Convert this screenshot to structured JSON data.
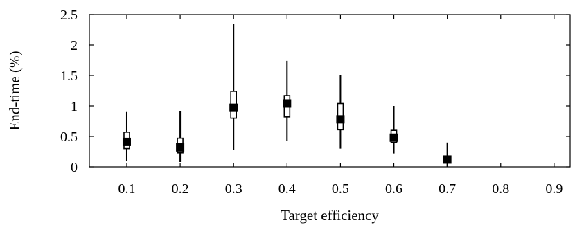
{
  "chart_data": {
    "type": "box",
    "title": "",
    "xlabel": "Target efficiency",
    "ylabel": "End-time (%)",
    "xlim": [
      0.03,
      0.93
    ],
    "ylim": [
      0,
      2.5
    ],
    "xticks": [
      "0.1",
      "0.2",
      "0.3",
      "0.4",
      "0.5",
      "0.6",
      "0.7",
      "0.8",
      "0.9"
    ],
    "yticks": [
      "0",
      "0.5",
      "1",
      "1.5",
      "2",
      "2.5"
    ],
    "grid": false,
    "legend": "none",
    "series": [
      {
        "points": [
          {
            "x": 0.1,
            "min": 0.1,
            "q1": 0.3,
            "median": 0.41,
            "q3": 0.57,
            "max": 0.9
          },
          {
            "x": 0.2,
            "min": 0.08,
            "q1": 0.23,
            "median": 0.32,
            "q3": 0.47,
            "max": 0.92
          },
          {
            "x": 0.3,
            "min": 0.28,
            "q1": 0.8,
            "median": 0.97,
            "q3": 1.24,
            "max": 2.35
          },
          {
            "x": 0.4,
            "min": 0.43,
            "q1": 0.82,
            "median": 1.04,
            "q3": 1.17,
            "max": 1.74
          },
          {
            "x": 0.5,
            "min": 0.3,
            "q1": 0.61,
            "median": 0.78,
            "q3": 1.04,
            "max": 1.51
          },
          {
            "x": 0.6,
            "min": 0.22,
            "q1": 0.4,
            "median": 0.48,
            "q3": 0.6,
            "max": 1.0
          },
          {
            "x": 0.7,
            "min": 0.0,
            "q1": 0.1,
            "median": 0.12,
            "q3": 0.14,
            "max": 0.4
          }
        ]
      }
    ]
  }
}
